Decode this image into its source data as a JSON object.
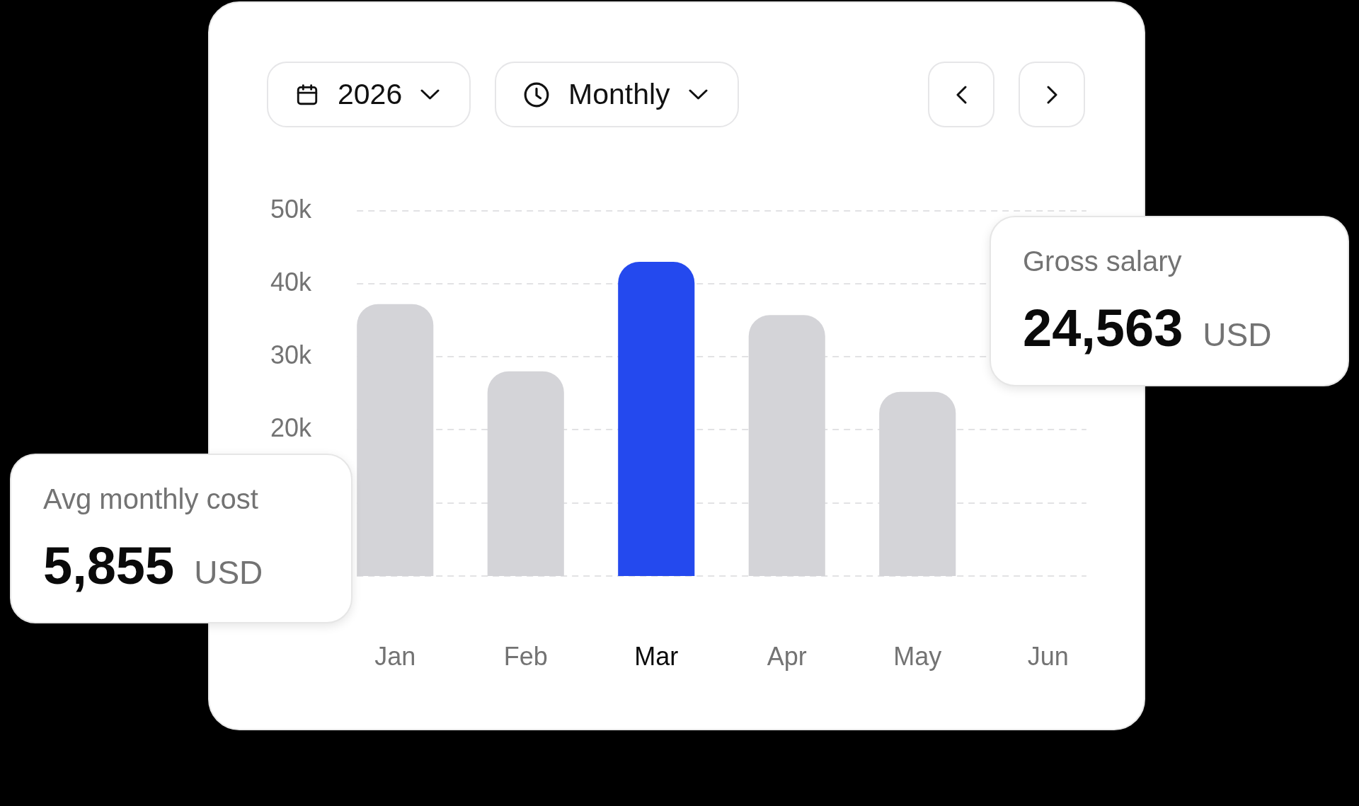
{
  "chart_data": [
    {
      "type": "bar",
      "categories": [
        "Jan",
        "Feb",
        "Mar",
        "Apr",
        "May",
        "Jun"
      ],
      "values": [
        37200,
        28000,
        43000,
        35700,
        25200,
        null
      ],
      "colors": [
        "#d4d4d8",
        "#d4d4d8",
        "#2449ee",
        "#d4d4d8",
        "#d4d4d8",
        "#d4d4d8"
      ],
      "ylim": [
        0,
        50000
      ],
      "yticks": [
        {
          "value": 0,
          "label": null
        },
        {
          "value": 10000,
          "label": null
        },
        {
          "value": 20000,
          "label": "20k"
        },
        {
          "value": 30000,
          "label": "30k"
        },
        {
          "value": 40000,
          "label": "40k"
        },
        {
          "value": 50000,
          "label": "50k"
        }
      ],
      "grid": "y",
      "annotations": [
        "2026",
        "Monthly"
      ]
    },
    {
      "type": "other",
      "title": "Gross salary",
      "annotations": [
        "24,563",
        "USD"
      ]
    },
    {
      "type": "other",
      "title": "Avg monthly cost",
      "annotations": [
        "5,855",
        "USD"
      ]
    }
  ]
}
